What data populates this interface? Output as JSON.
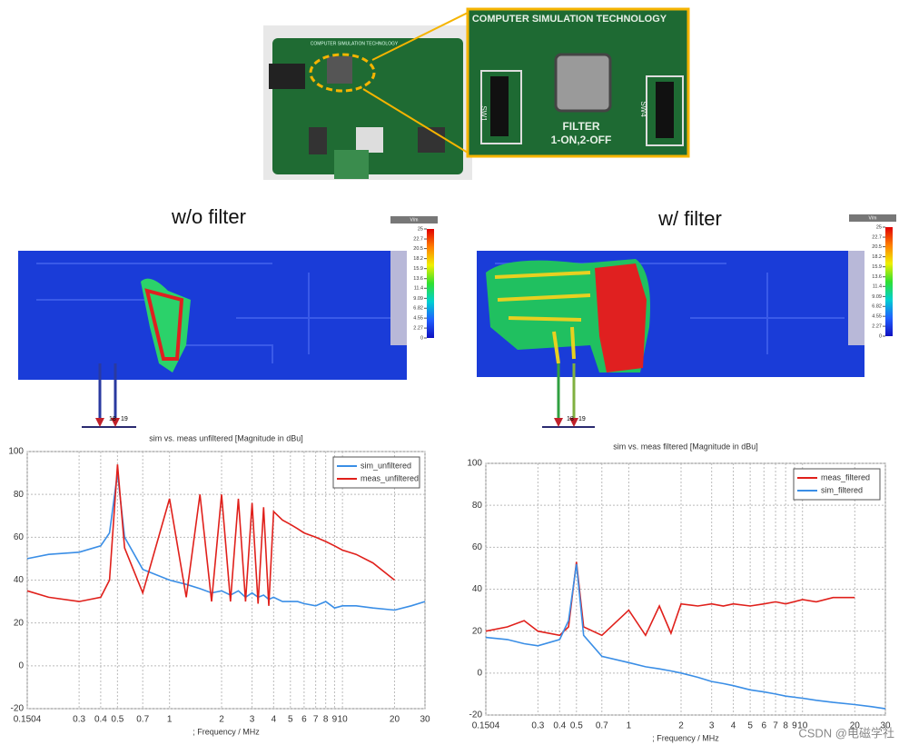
{
  "photo": {
    "board_label": "COMPUTER SIMULATION TECHNOLOGY",
    "inset_title": "COMPUTER SIMULATION TECHNOLOGY",
    "switch_left": "SW1",
    "switch_right": "SW4",
    "filter_label": "FILTER",
    "filter_mode": "1-ON,2-OFF"
  },
  "fields": [
    {
      "label": "w/o filter",
      "ports": [
        "18",
        "19"
      ]
    },
    {
      "label": "w/ filter",
      "ports": [
        "18",
        "19"
      ]
    }
  ],
  "colorbar": {
    "unit": "V/m",
    "ticks": [
      25,
      22.7,
      20.5,
      18.2,
      15.9,
      13.6,
      11.4,
      9.09,
      6.82,
      4.55,
      2.27,
      0
    ]
  },
  "watermark": "CSDN @电磁学社",
  "chart_data": [
    {
      "type": "line",
      "title": "sim vs. meas unfiltered [Magnitude in dBu]",
      "x_label": "; Frequency / MHz",
      "log_x": true,
      "grid": true,
      "legend": "top-right",
      "x": [
        0.1504,
        0.2,
        0.3,
        0.4,
        0.45,
        0.5,
        0.55,
        0.7,
        1,
        1.25,
        1.5,
        1.75,
        2,
        2.25,
        2.5,
        2.75,
        3,
        3.25,
        3.5,
        3.75,
        4,
        4.5,
        5,
        5.5,
        6,
        7,
        8,
        9,
        10,
        12,
        15,
        20,
        25,
        30
      ],
      "series": [
        {
          "name": "sim_unfiltered",
          "color": "#3a8ee6",
          "values": [
            50,
            52,
            53,
            56,
            62,
            90,
            60,
            45,
            40,
            38,
            36,
            34,
            35,
            33,
            35,
            32,
            34,
            32,
            33,
            31,
            32,
            30,
            30,
            30,
            29,
            28,
            30,
            27,
            28,
            28,
            27,
            26,
            28,
            30
          ]
        },
        {
          "name": "meas_unfiltered",
          "color": "#e0201b",
          "values": [
            35,
            32,
            30,
            32,
            40,
            94,
            55,
            34,
            78,
            32,
            80,
            30,
            80,
            30,
            78,
            30,
            76,
            29,
            74,
            28,
            72,
            68,
            66,
            64,
            62,
            60,
            58,
            56,
            54,
            52,
            48,
            40,
            null,
            null
          ]
        }
      ],
      "xlim": [
        0.1504,
        30
      ],
      "xticks": [
        0.1504,
        0.3,
        0.4,
        0.5,
        0.7,
        1,
        2,
        3,
        4,
        5,
        6,
        7,
        8,
        9,
        10,
        20,
        30
      ],
      "ylim": [
        -20,
        100
      ],
      "yticks": [
        -20,
        0,
        20,
        40,
        60,
        80,
        100
      ]
    },
    {
      "type": "line",
      "title": "sim vs. meas filtered [Magnitude in dBu]",
      "x_label": "; Frequency / MHz",
      "log_x": true,
      "grid": true,
      "legend": "top-right",
      "x": [
        0.1504,
        0.2,
        0.25,
        0.3,
        0.4,
        0.45,
        0.5,
        0.55,
        0.7,
        1,
        1.25,
        1.5,
        1.75,
        2,
        2.5,
        3,
        3.5,
        4,
        5,
        6,
        7,
        8,
        10,
        12,
        15,
        20,
        25,
        30
      ],
      "series": [
        {
          "name": "meas_filtered",
          "color": "#e0201b",
          "values": [
            20,
            22,
            25,
            20,
            18,
            22,
            53,
            22,
            18,
            30,
            18,
            32,
            19,
            33,
            32,
            33,
            32,
            33,
            32,
            33,
            34,
            33,
            35,
            34,
            36,
            36,
            null,
            null
          ]
        },
        {
          "name": "sim_filtered",
          "color": "#3a8ee6",
          "values": [
            17,
            16,
            14,
            13,
            16,
            25,
            52,
            18,
            8,
            5,
            3,
            2,
            1,
            0,
            -2,
            -4,
            -5,
            -6,
            -8,
            -9,
            -10,
            -11,
            -12,
            -13,
            -14,
            -15,
            -16,
            -17
          ]
        }
      ],
      "xlim": [
        0.1504,
        30
      ],
      "xticks": [
        0.1504,
        0.3,
        0.4,
        0.5,
        0.7,
        1,
        2,
        3,
        4,
        5,
        6,
        7,
        8,
        9,
        10,
        20,
        30
      ],
      "ylim": [
        -20,
        100
      ],
      "yticks": [
        -20,
        0,
        20,
        40,
        60,
        80,
        100
      ]
    }
  ]
}
